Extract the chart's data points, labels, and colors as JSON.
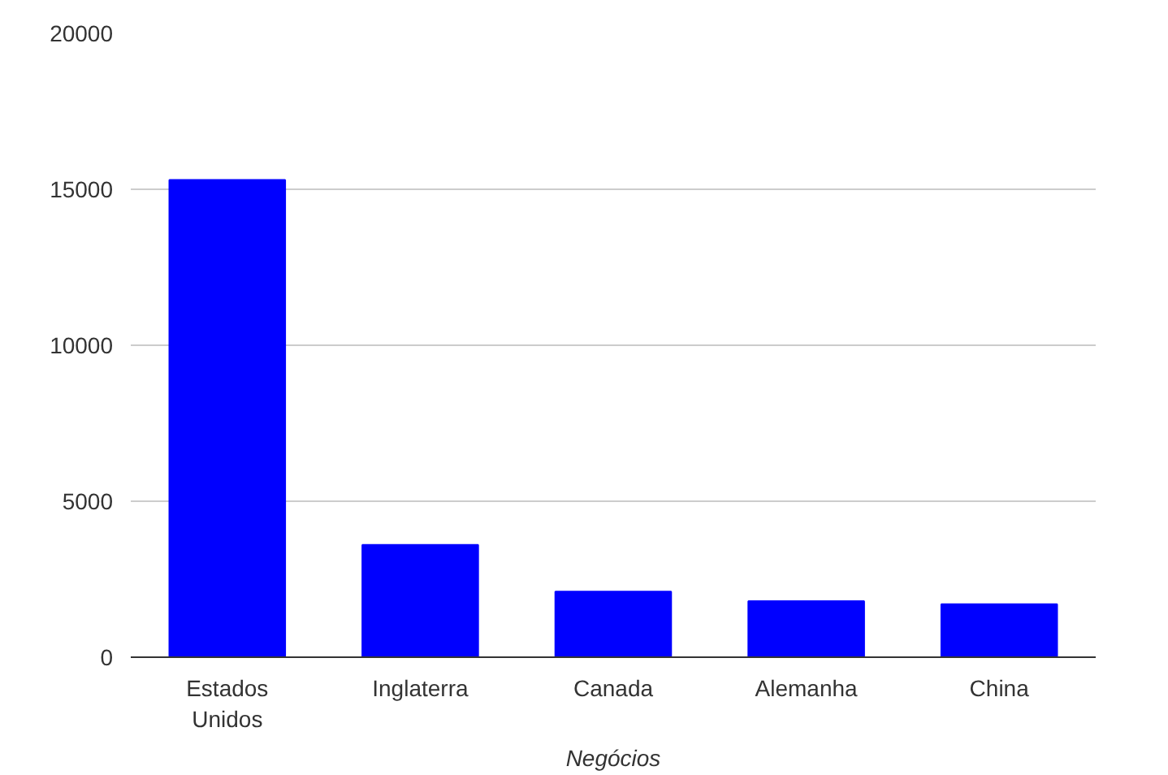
{
  "chart_data": {
    "type": "bar",
    "xlabel": "Negócios",
    "categories": [
      "Estados\nUnidos",
      "Inglaterra",
      "Canada",
      "Alemanha",
      "China"
    ],
    "values": [
      15300,
      3600,
      2100,
      1800,
      1700
    ],
    "color": "#0000ff",
    "ylim": [
      0,
      20000
    ],
    "yticks": [
      0,
      5000,
      10000,
      15000,
      20000
    ],
    "grid": "y"
  }
}
